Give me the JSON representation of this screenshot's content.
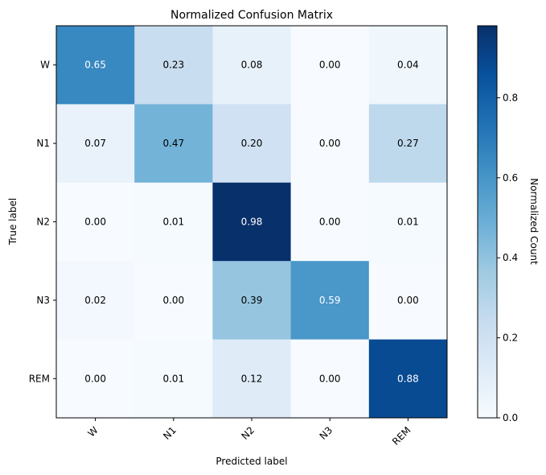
{
  "chart_data": {
    "type": "heatmap",
    "title": "Normalized Confusion Matrix",
    "xlabel": "Predicted label",
    "ylabel": "True label",
    "x_categories": [
      "W",
      "N1",
      "N2",
      "N3",
      "REM"
    ],
    "y_categories": [
      "W",
      "N1",
      "N2",
      "N3",
      "REM"
    ],
    "values": [
      [
        0.65,
        0.23,
        0.08,
        0.0,
        0.04
      ],
      [
        0.07,
        0.47,
        0.2,
        0.0,
        0.27
      ],
      [
        0.0,
        0.01,
        0.98,
        0.0,
        0.01
      ],
      [
        0.02,
        0.0,
        0.39,
        0.59,
        0.0
      ],
      [
        0.0,
        0.01,
        0.12,
        0.0,
        0.88
      ]
    ],
    "value_labels": [
      [
        "0.65",
        "0.23",
        "0.08",
        "0.00",
        "0.04"
      ],
      [
        "0.07",
        "0.47",
        "0.20",
        "0.00",
        "0.27"
      ],
      [
        "0.00",
        "0.01",
        "0.98",
        "0.00",
        "0.01"
      ],
      [
        "0.02",
        "0.00",
        "0.39",
        "0.59",
        "0.00"
      ],
      [
        "0.00",
        "0.01",
        "0.12",
        "0.00",
        "0.88"
      ]
    ],
    "colormap": "Blues",
    "colorbar": {
      "label": "Normalized Count",
      "range": [
        0,
        0.98
      ],
      "ticks": [
        0.0,
        0.2,
        0.4,
        0.6,
        0.8
      ],
      "tick_labels": [
        "0.0",
        "0.2",
        "0.4",
        "0.6",
        "0.8"
      ]
    },
    "grid": false,
    "legend": "none"
  }
}
